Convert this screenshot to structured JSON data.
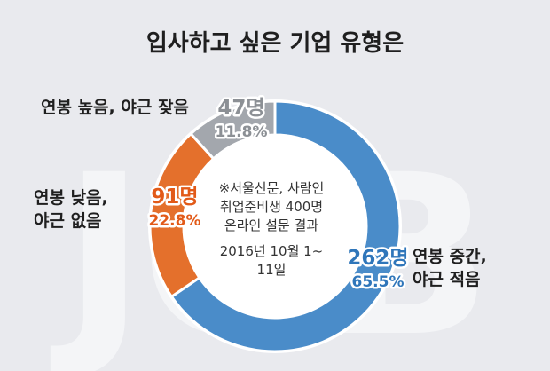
{
  "title": "입사하고 싶은 기업 유형은",
  "watermark": "JOB",
  "note": {
    "line1": "※서울신문, 사람인",
    "line2": "취업준비생 400명",
    "line3": "온라인 설문 결과",
    "line4": "2016년 10월 1~",
    "line5": "11일"
  },
  "colors": {
    "background": "#e9eaee",
    "slice_blue": "#4a8cc9",
    "slice_orange": "#e4702c",
    "slice_gray": "#a3a7ad",
    "count_blue": "#2f76ba",
    "count_orange": "#e25a18",
    "count_gray": "#8c9095"
  },
  "chart_data": {
    "type": "pie",
    "title": "입사하고 싶은 기업 유형은",
    "categories": [
      "연봉 중간, 야근 적음",
      "연봉 낮음, 야근 없음",
      "연봉 높음, 야근 잦음"
    ],
    "values": [
      262,
      91,
      47
    ],
    "counts": [
      "262명",
      "91명",
      "47명"
    ],
    "percents": [
      "65.5%",
      "22.8%",
      "11.8%"
    ],
    "category_lines": [
      [
        "연봉 중간,",
        "야근 적음"
      ],
      [
        "연봉 낮음,",
        "야근 없음"
      ],
      [
        "연봉 높음, 야근 잦음"
      ]
    ]
  }
}
